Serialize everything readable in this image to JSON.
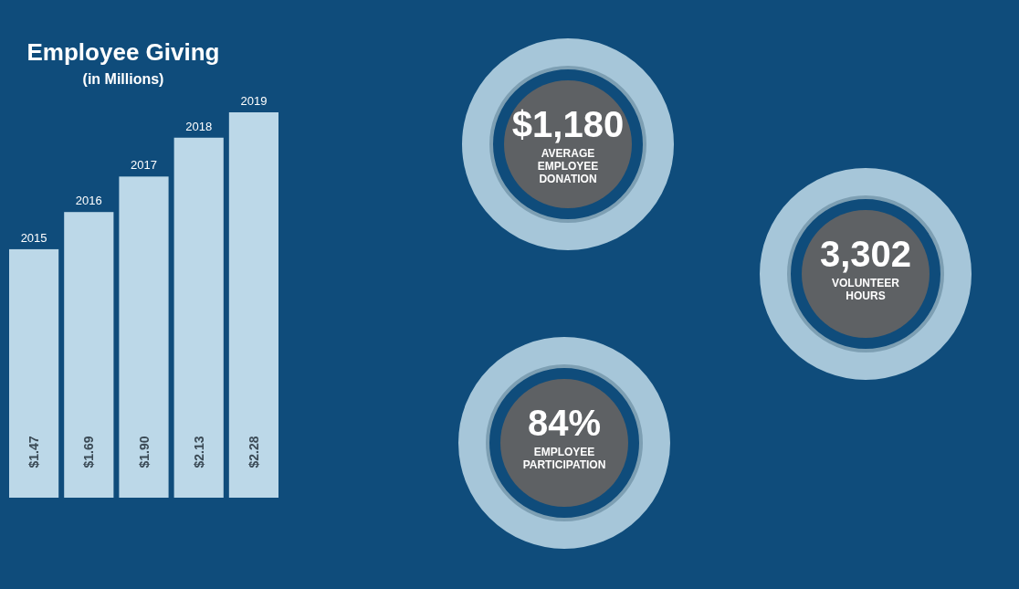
{
  "chart_data": [
    {
      "type": "bar",
      "title": "Employee Giving",
      "subtitle": "(in Millions)",
      "categories": [
        "2015",
        "2016",
        "2017",
        "2018",
        "2019"
      ],
      "values": [
        1.47,
        1.69,
        1.9,
        2.13,
        2.28
      ],
      "value_labels": [
        "$1.47",
        "$1.69",
        "$1.90",
        "$2.13",
        "$2.28"
      ],
      "color": "#bcd8e8"
    },
    {
      "type": "other",
      "annotations": [
        "$1,180",
        "AVERAGE EMPLOYEE DONATION",
        "3,302",
        "VOLUNTEER HOURS",
        "84%",
        "EMPLOYEE PARTICIPATION"
      ]
    }
  ]
}
